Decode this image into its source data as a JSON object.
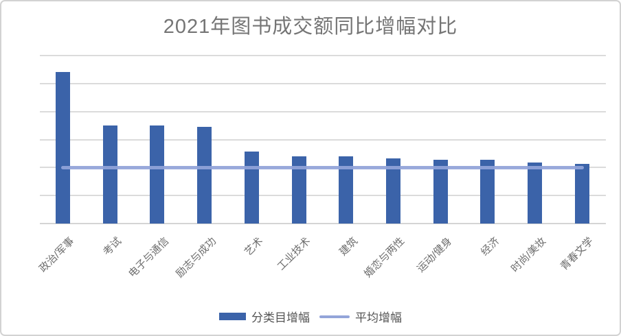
{
  "chart_data": {
    "type": "bar",
    "title": "2021年图书成交额同比增幅对比",
    "categories": [
      "政治/军事",
      "考试",
      "电子与通信",
      "励志与成功",
      "艺术",
      "工业技术",
      "建筑",
      "婚恋与两性",
      "运动/健身",
      "经济",
      "时尚/美妆",
      "青春文学"
    ],
    "series": [
      {
        "name": "分类目增幅",
        "type": "bar",
        "color": "#3b63a9",
        "values": [
          5.42,
          3.5,
          3.51,
          3.46,
          2.58,
          2.4,
          2.39,
          2.33,
          2.27,
          2.28,
          2.17,
          2.13
        ]
      },
      {
        "name": "平均增幅",
        "type": "line",
        "color": "#93a4d9",
        "value": 2.0
      }
    ],
    "xlabel": "",
    "ylabel": "",
    "ylim": [
      0,
      6
    ],
    "units": "gridline-intervals (y axis shows no tick labels)",
    "gridline_count": 7,
    "grid": "horizontal only",
    "legend_position": "bottom-center",
    "x_label_rotation_deg": 45
  },
  "colors": {
    "bar": "#3b63a9",
    "average_line": "#93a4d9",
    "gridline": "#dbdbdb",
    "axis_line": "#d4d4d4",
    "title_text": "#757575",
    "category_text": "#6e6e6e",
    "legend_text": "#545454",
    "frame_border": "#d2d2d2",
    "background": "#ffffff"
  }
}
